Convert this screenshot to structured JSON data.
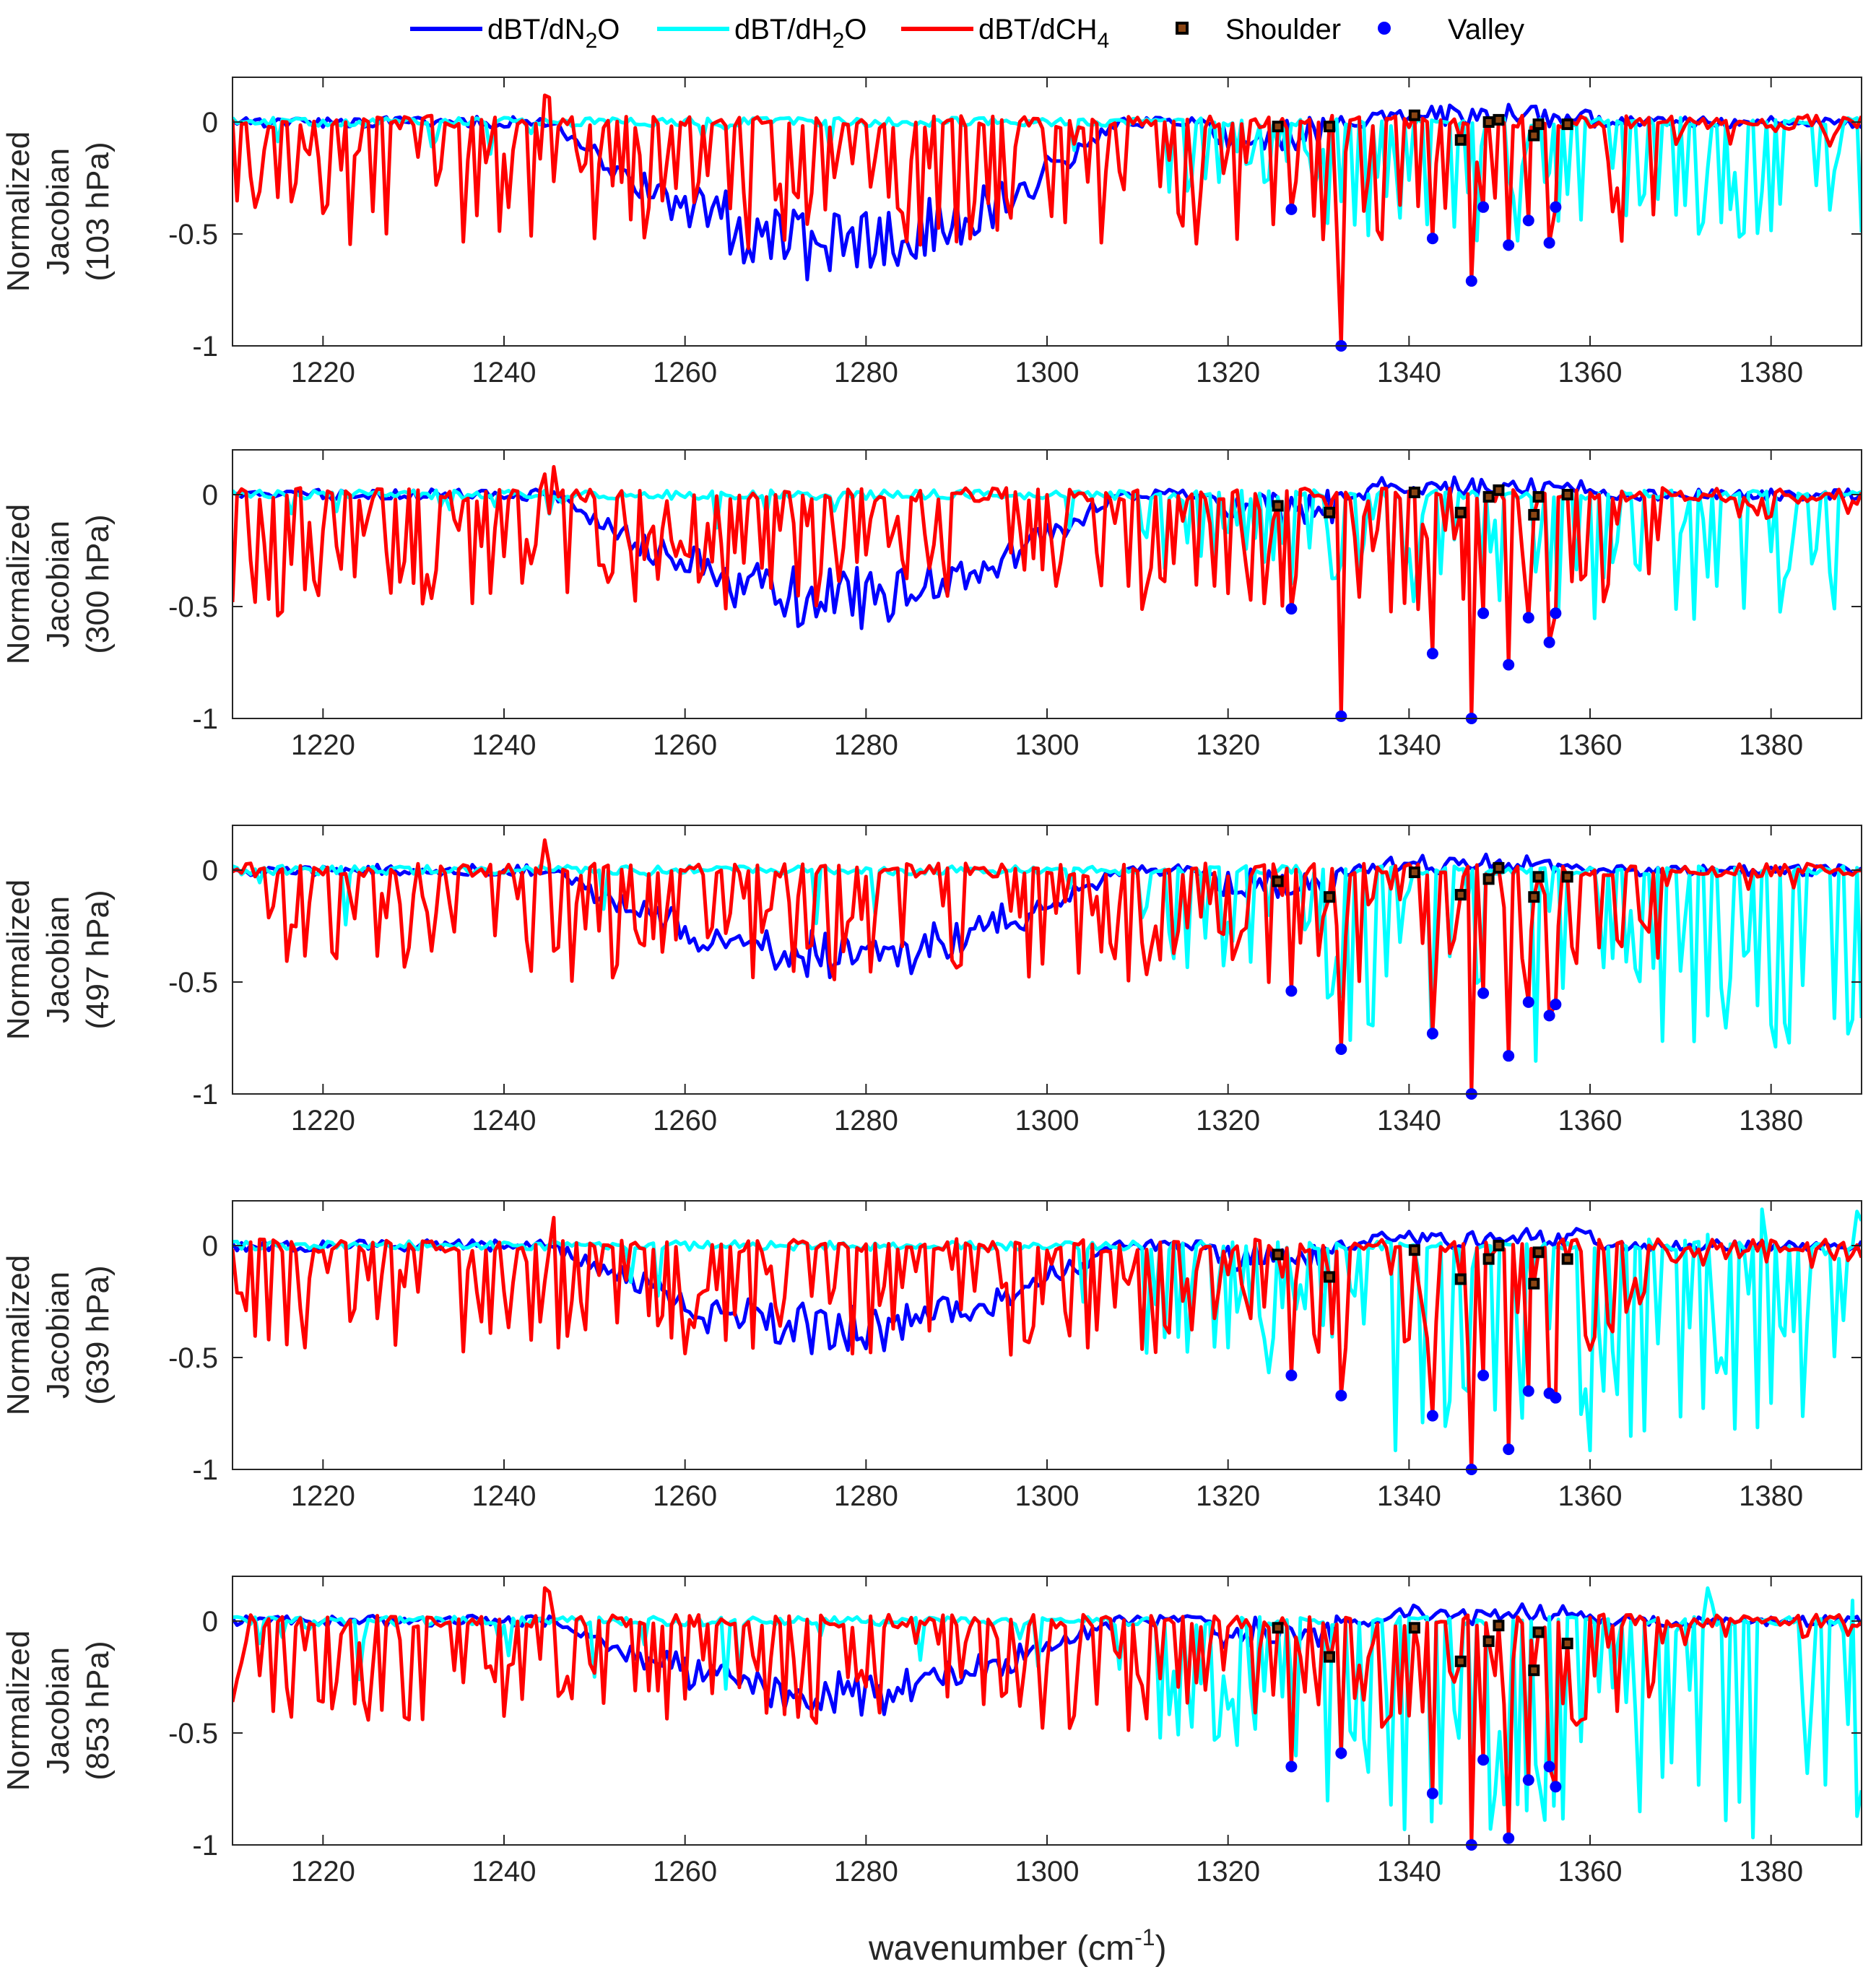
{
  "chart_data": {
    "type": "line",
    "xlabel": "wavenumber (cm",
    "xlabel_sup": "-1",
    "xlabel_end": ")",
    "xlim": [
      1210,
      1390
    ],
    "ylim": [
      -1,
      0.2
    ],
    "xticks": [
      1220,
      1240,
      1260,
      1280,
      1300,
      1320,
      1340,
      1360,
      1380
    ],
    "yticks": [
      0,
      -0.5,
      -1
    ],
    "ytick_labels": [
      "0",
      "-0.5",
      "-1"
    ],
    "colors": {
      "n2o": "#0000FF",
      "h2o": "#00FFFF",
      "ch4": "#FF0000",
      "shoulder_fill": "#8B4513",
      "valley": "#0000FF"
    },
    "legend": {
      "placement": "top",
      "n2o": {
        "pre": "dBT/dN",
        "sub": "2",
        "post": "O"
      },
      "h2o": {
        "pre": "dBT/dH",
        "sub": "2",
        "post": "O"
      },
      "ch4": {
        "pre": "dBT/dCH",
        "sub": "4",
        "post": ""
      },
      "shoulder": "Shoulder",
      "valley": "Valley"
    },
    "panels": [
      {
        "ylabel": [
          "Normalized",
          "Jacobian",
          "(103 hPa)"
        ],
        "shoulder_x": [
          1325.5,
          1331.2,
          1340.6,
          1345.7,
          1348.8,
          1349.9,
          1353.8,
          1354.3,
          1357.5
        ],
        "shoulder_y": [
          -0.02,
          -0.02,
          0.03,
          -0.08,
          0.0,
          0.01,
          -0.06,
          -0.01,
          -0.01
        ],
        "valley_x": [
          1327.0,
          1332.5,
          1342.6,
          1346.9,
          1348.2,
          1351.0,
          1353.2,
          1355.5,
          1356.2
        ],
        "valley_y": [
          -0.39,
          -1.0,
          -0.52,
          -0.71,
          -0.38,
          -0.55,
          -0.44,
          -0.54,
          -0.38
        ],
        "n2o_depth": 0.72,
        "h2o_depth": 0.55,
        "ch4_scale": 1.0
      },
      {
        "ylabel": [
          "Normalized",
          "Jacobian",
          "(300 hPa)"
        ],
        "shoulder_x": [
          1325.5,
          1331.2,
          1340.6,
          1345.7,
          1348.8,
          1349.9,
          1353.8,
          1354.3,
          1357.5
        ],
        "shoulder_y": [
          -0.05,
          -0.08,
          0.01,
          -0.08,
          -0.01,
          0.02,
          -0.09,
          -0.01,
          0.0
        ],
        "valley_x": [
          1327.0,
          1332.5,
          1342.6,
          1346.9,
          1348.2,
          1351.0,
          1353.2,
          1355.5,
          1356.2
        ],
        "valley_y": [
          -0.51,
          -0.99,
          -0.71,
          -1.0,
          -0.53,
          -0.76,
          -0.55,
          -0.66,
          -0.53
        ],
        "n2o_depth": 0.6,
        "h2o_depth": 0.55,
        "ch4_scale": 0.95
      },
      {
        "ylabel": [
          "Normalized",
          "Jacobian",
          "(497 hPa)"
        ],
        "shoulder_x": [
          1325.5,
          1331.2,
          1340.6,
          1345.7,
          1348.8,
          1349.9,
          1353.8,
          1354.3,
          1357.5
        ],
        "shoulder_y": [
          -0.05,
          -0.12,
          -0.01,
          -0.11,
          -0.04,
          0.01,
          -0.12,
          -0.03,
          -0.03
        ],
        "valley_x": [
          1327.0,
          1332.5,
          1342.6,
          1346.9,
          1348.2,
          1351.0,
          1353.2,
          1355.5,
          1356.2
        ],
        "valley_y": [
          -0.54,
          -0.8,
          -0.73,
          -1.0,
          -0.55,
          -0.83,
          -0.59,
          -0.65,
          -0.6
        ],
        "n2o_depth": 0.5,
        "h2o_depth": 0.8,
        "ch4_scale": 0.92
      },
      {
        "ylabel": [
          "Normalized",
          "Jacobian",
          "(639 hPa)"
        ],
        "shoulder_x": [
          1325.5,
          1331.2,
          1340.6,
          1345.7,
          1348.8,
          1349.9,
          1353.8,
          1354.3,
          1357.5
        ],
        "shoulder_y": [
          -0.04,
          -0.14,
          -0.02,
          -0.15,
          -0.06,
          0.0,
          -0.17,
          -0.03,
          -0.06
        ],
        "valley_x": [
          1327.0,
          1332.5,
          1342.6,
          1346.9,
          1348.2,
          1351.0,
          1353.2,
          1355.5,
          1356.2
        ],
        "valley_y": [
          -0.58,
          -0.67,
          -0.76,
          -1.0,
          -0.58,
          -0.91,
          -0.65,
          -0.66,
          -0.68
        ],
        "n2o_depth": 0.48,
        "h2o_depth": 0.9,
        "ch4_scale": 0.9
      },
      {
        "ylabel": [
          "Normalized",
          "Jacobian",
          "(853 hPa)"
        ],
        "shoulder_x": [
          1325.5,
          1331.2,
          1340.6,
          1345.7,
          1348.8,
          1349.9,
          1353.8,
          1354.3,
          1357.5
        ],
        "shoulder_y": [
          -0.03,
          -0.16,
          -0.03,
          -0.18,
          -0.09,
          -0.02,
          -0.22,
          -0.05,
          -0.1
        ],
        "valley_x": [
          1327.0,
          1332.5,
          1342.6,
          1346.9,
          1348.2,
          1351.0,
          1353.2,
          1355.5,
          1356.2
        ],
        "valley_y": [
          -0.65,
          -0.59,
          -0.77,
          -1.0,
          -0.62,
          -0.97,
          -0.71,
          -0.65,
          -0.74
        ],
        "n2o_depth": 0.42,
        "h2o_depth": 0.98,
        "ch4_scale": 0.88
      }
    ]
  }
}
